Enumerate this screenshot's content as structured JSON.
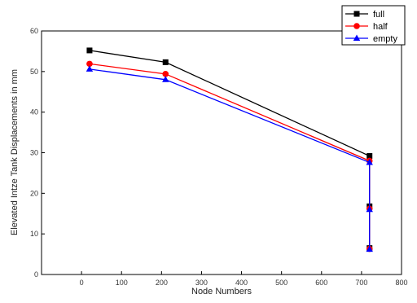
{
  "chart_data": {
    "type": "line",
    "title": "",
    "xlabel": "Node Numbers",
    "ylabel": "Elevated Intze Tank  Displacements in mm",
    "xlim": [
      -100,
      800
    ],
    "ylim": [
      0,
      60
    ],
    "xticks": [
      0,
      100,
      200,
      300,
      400,
      500,
      600,
      700,
      800
    ],
    "yticks": [
      0,
      10,
      20,
      30,
      40,
      50,
      60
    ],
    "grid": false,
    "legend_position": "top-right",
    "series": [
      {
        "name": "full",
        "color": "#000000",
        "marker": "square",
        "x": [
          20,
          210,
          720,
          720,
          720
        ],
        "y": [
          55.2,
          52.3,
          29.2,
          16.8,
          6.5
        ]
      },
      {
        "name": "half",
        "color": "#ff0000",
        "marker": "circle",
        "x": [
          20,
          210,
          720,
          720,
          720
        ],
        "y": [
          51.9,
          49.4,
          28.0,
          16.2,
          6.3
        ]
      },
      {
        "name": "empty",
        "color": "#0000ff",
        "marker": "triangle",
        "x": [
          20,
          210,
          720,
          720,
          720
        ],
        "y": [
          50.6,
          48.0,
          27.6,
          16.0,
          6.2
        ]
      }
    ]
  }
}
